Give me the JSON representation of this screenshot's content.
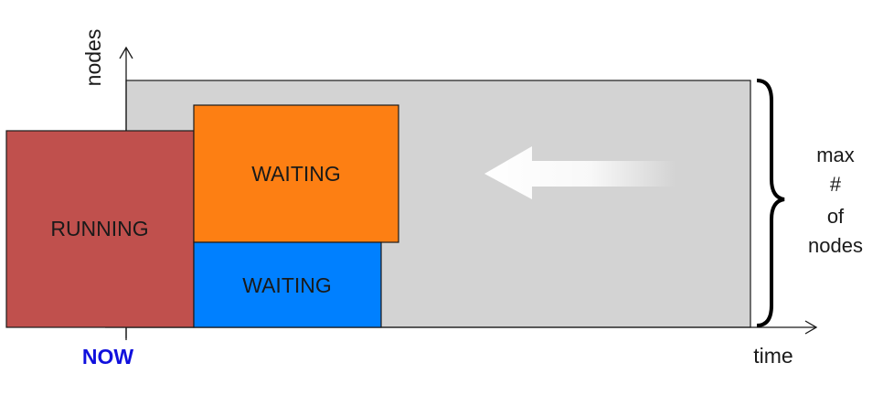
{
  "axes": {
    "y_label": "nodes",
    "x_label": "time",
    "now_label": "NOW"
  },
  "boxes": {
    "running": {
      "label": "RUNNING",
      "color": "#c0504d"
    },
    "waiting_top": {
      "label": "WAITING",
      "color": "#fd7f13"
    },
    "waiting_bottom": {
      "label": "WAITING",
      "color": "#0080ff"
    }
  },
  "capacity": {
    "line1": "max",
    "line2": "#",
    "line3": "of",
    "line4": "nodes",
    "color": "#d3d3d3"
  },
  "arrow": {
    "icon": "left-arrow-icon",
    "direction": "left"
  }
}
